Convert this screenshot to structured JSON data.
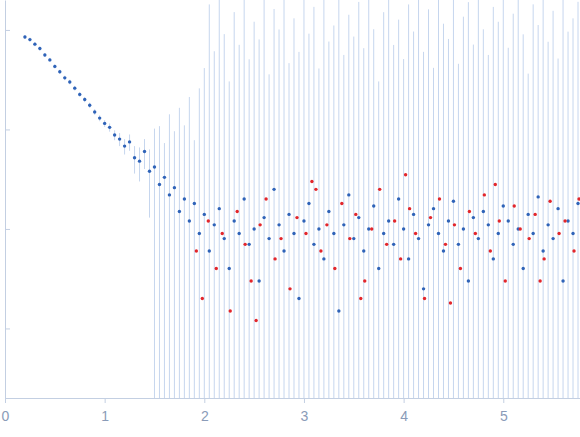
{
  "chart_data": {
    "type": "scatter",
    "log": "y",
    "tick_labels": "x",
    "xlim": [
      0,
      5.77
    ],
    "xticks": [
      0,
      1,
      2,
      3,
      4,
      5
    ],
    "ylim": [
      0.2,
      2000
    ],
    "yticks": [
      1,
      10,
      100,
      1000
    ],
    "series": [
      {
        "color": "#2f63b8",
        "marker": "circle",
        "x": [
          0.2,
          0.25,
          0.3,
          0.35,
          0.4,
          0.45,
          0.5,
          0.55,
          0.6,
          0.65,
          0.7,
          0.75,
          0.8,
          0.85,
          0.9,
          0.95,
          1.0,
          1.05,
          1.1,
          1.15,
          1.2,
          1.25,
          1.3,
          1.35,
          1.4,
          1.45,
          1.5,
          1.55,
          1.6,
          1.65,
          1.7,
          1.75,
          1.8,
          1.85,
          1.9,
          1.95,
          2.0,
          2.05,
          2.1,
          2.15,
          2.2,
          2.25,
          2.3,
          2.35,
          2.4,
          2.45,
          2.5,
          2.55,
          2.6,
          2.65,
          2.7,
          2.75,
          2.8,
          2.85,
          2.9,
          2.95,
          3.0,
          3.05,
          3.1,
          3.15,
          3.2,
          3.25,
          3.3,
          3.35,
          3.4,
          3.45,
          3.5,
          3.55,
          3.6,
          3.65,
          3.7,
          3.75,
          3.8,
          3.85,
          3.9,
          3.95,
          4.0,
          4.05,
          4.1,
          4.15,
          4.2,
          4.25,
          4.3,
          4.35,
          4.4,
          4.45,
          4.5,
          4.55,
          4.6,
          4.65,
          4.7,
          4.75,
          4.8,
          4.85,
          4.9,
          4.95,
          5.0,
          5.05,
          5.1,
          5.15,
          5.2,
          5.25,
          5.3,
          5.35,
          5.4,
          5.45,
          5.5,
          5.55,
          5.6,
          5.65,
          5.7,
          5.75
        ],
        "values": [
          850,
          800,
          720,
          650,
          560,
          500,
          430,
          380,
          330,
          300,
          260,
          225,
          200,
          175,
          150,
          130,
          115,
          105,
          88,
          80,
          68,
          75,
          52,
          48,
          60,
          38,
          42,
          28,
          33,
          22,
          26,
          15,
          20,
          12,
          18,
          9,
          14,
          6,
          11,
          16,
          8,
          4,
          12,
          9,
          20,
          7,
          10,
          3,
          13,
          8,
          25,
          11,
          6,
          14,
          9,
          2,
          12,
          18,
          7,
          10,
          5,
          15,
          9,
          1.5,
          11,
          22,
          8,
          13,
          6,
          10,
          17,
          4,
          9,
          12,
          7,
          20,
          10,
          5,
          14,
          8,
          2.5,
          11,
          16,
          9,
          6,
          12,
          19,
          7,
          10,
          3,
          13,
          8,
          15,
          11,
          5,
          9,
          17,
          12,
          7,
          10,
          4,
          14,
          9,
          21,
          6,
          11,
          8,
          16,
          3,
          12,
          9,
          18
        ],
        "errors": [
          40,
          38,
          34,
          30,
          26,
          24,
          21,
          19,
          17,
          16,
          14,
          13,
          12,
          11,
          10,
          9,
          9,
          10,
          10,
          12,
          12,
          14,
          16,
          18,
          20,
          25,
          60,
          80,
          40,
          120,
          70,
          150,
          90,
          200,
          60,
          250,
          400,
          1800,
          600,
          2500,
          900,
          300,
          1500,
          700,
          2200,
          500,
          1200,
          800,
          2400,
          350,
          1600,
          1000,
          2100,
          450,
          1300,
          600,
          2500,
          900,
          1700,
          400,
          2000,
          750,
          1100,
          2300,
          550,
          1400,
          850,
          1900,
          650,
          2500,
          1000,
          300,
          1500,
          2200,
          700,
          1250,
          500,
          1800,
          950,
          2400,
          600,
          1600,
          400,
          2100,
          1150,
          800,
          2300,
          450,
          1350,
          1900,
          700,
          2500,
          1000,
          550,
          1700,
          1200,
          2000,
          650,
          1450,
          2400,
          900,
          350,
          1800,
          1100,
          2200,
          750,
          1550,
          500,
          2500,
          950,
          1300,
          1900
        ]
      },
      {
        "color": "#e3262b",
        "marker": "circle",
        "x": [
          1.92,
          1.98,
          2.04,
          2.12,
          2.18,
          2.26,
          2.33,
          2.41,
          2.47,
          2.56,
          2.62,
          2.71,
          2.77,
          2.86,
          2.93,
          3.02,
          3.08,
          3.17,
          3.23,
          3.31,
          3.38,
          3.46,
          3.52,
          3.61,
          3.68,
          3.76,
          3.83,
          3.91,
          3.97,
          4.06,
          4.12,
          4.21,
          4.27,
          4.36,
          4.42,
          4.51,
          4.57,
          4.66,
          4.72,
          4.81,
          4.87,
          4.96,
          5.02,
          5.11,
          5.17,
          5.26,
          5.32,
          5.41,
          5.47,
          5.56,
          5.62,
          5.71,
          5.76,
          2.52,
          3.12,
          3.57,
          4.02,
          4.47,
          4.92,
          5.37
        ],
        "values": [
          6,
          2,
          12,
          4,
          9,
          1.5,
          15,
          7,
          3,
          11,
          20,
          5,
          8,
          2.5,
          13,
          9,
          30,
          6,
          11,
          4,
          18,
          8,
          14,
          3,
          10,
          25,
          7,
          12,
          5,
          16,
          9,
          2,
          13,
          20,
          7,
          11,
          4,
          15,
          9,
          22,
          6,
          12,
          3,
          17,
          10,
          8,
          14,
          5,
          19,
          9,
          12,
          6,
          20,
          1.2,
          25,
          2,
          35,
          1.8,
          28,
          3
        ]
      }
    ]
  }
}
